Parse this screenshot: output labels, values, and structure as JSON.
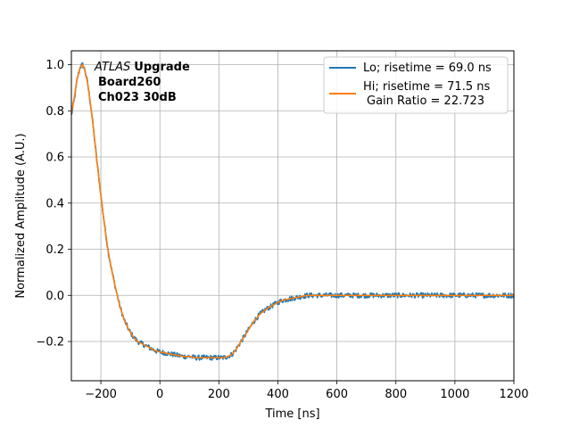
{
  "chart_data": {
    "type": "line",
    "title": "",
    "xlabel": "Time [ns]",
    "ylabel": "Normalized Amplitude (A.U.)",
    "xlim": [
      -300,
      1200
    ],
    "ylim": [
      -0.37,
      1.06
    ],
    "xticks": [
      -200,
      0,
      200,
      400,
      600,
      800,
      1000,
      1200
    ],
    "yticks": [
      -0.2,
      0.0,
      0.2,
      0.4,
      0.6,
      0.8,
      1.0
    ],
    "xtick_labels": [
      "−200",
      "0",
      "200",
      "400",
      "600",
      "800",
      "1000",
      "1200"
    ],
    "ytick_labels": [
      "−0.2",
      "0.0",
      "0.2",
      "0.4",
      "0.6",
      "0.8",
      "1.0"
    ],
    "grid": true,
    "legend_position": "top-right",
    "annotation": {
      "atlas": "ATLAS",
      "upgrade": "Upgrade",
      "line2": "Board260",
      "line3": "Ch023 30dB"
    },
    "series": [
      {
        "name": "Lo; risetime = 69.0 ns",
        "color": "#1f77b4",
        "noisy": true,
        "x": [
          -300,
          -290,
          -280,
          -270,
          -262,
          -255,
          -245,
          -235,
          -225,
          -215,
          -205,
          -195,
          -185,
          -175,
          -165,
          -150,
          -135,
          -120,
          -105,
          -90,
          -75,
          -60,
          -45,
          -30,
          -15,
          0,
          20,
          40,
          60,
          80,
          100,
          120,
          140,
          160,
          180,
          200,
          215,
          230,
          245,
          255,
          265,
          275,
          290,
          305,
          320,
          340,
          360,
          380,
          400,
          420,
          440,
          460,
          480,
          500,
          530,
          560,
          600,
          650,
          700,
          800,
          900,
          1000,
          1100,
          1200
        ],
        "y": [
          0.78,
          0.85,
          0.94,
          0.99,
          1.0,
          0.98,
          0.92,
          0.83,
          0.72,
          0.6,
          0.49,
          0.38,
          0.28,
          0.19,
          0.12,
          0.03,
          -0.05,
          -0.11,
          -0.15,
          -0.18,
          -0.2,
          -0.21,
          -0.22,
          -0.23,
          -0.24,
          -0.245,
          -0.25,
          -0.255,
          -0.26,
          -0.265,
          -0.265,
          -0.27,
          -0.27,
          -0.27,
          -0.27,
          -0.27,
          -0.27,
          -0.265,
          -0.255,
          -0.24,
          -0.22,
          -0.2,
          -0.17,
          -0.14,
          -0.11,
          -0.08,
          -0.06,
          -0.045,
          -0.03,
          -0.02,
          -0.015,
          -0.01,
          -0.005,
          0.0,
          0.0,
          0.0,
          0.0,
          0.0,
          0.0,
          0.0,
          0.0,
          0.0,
          0.0,
          0.0
        ]
      },
      {
        "name": "Hi; risetime = 71.5 ns\n Gain Ratio = 22.723",
        "color": "#ff7f0e",
        "noisy": false,
        "x": [
          -300,
          -290,
          -280,
          -270,
          -262,
          -255,
          -245,
          -235,
          -225,
          -215,
          -205,
          -195,
          -185,
          -175,
          -165,
          -150,
          -135,
          -120,
          -105,
          -90,
          -75,
          -60,
          -45,
          -30,
          -15,
          0,
          20,
          40,
          60,
          80,
          100,
          120,
          140,
          160,
          180,
          200,
          215,
          230,
          245,
          255,
          265,
          275,
          290,
          305,
          320,
          340,
          360,
          380,
          400,
          420,
          440,
          460,
          480,
          500,
          530,
          560,
          600,
          650,
          700,
          800,
          900,
          1000,
          1100,
          1200
        ],
        "y": [
          0.79,
          0.86,
          0.94,
          0.99,
          1.0,
          0.98,
          0.92,
          0.83,
          0.72,
          0.6,
          0.49,
          0.38,
          0.28,
          0.19,
          0.12,
          0.03,
          -0.05,
          -0.11,
          -0.15,
          -0.18,
          -0.2,
          -0.21,
          -0.22,
          -0.23,
          -0.24,
          -0.245,
          -0.25,
          -0.255,
          -0.26,
          -0.265,
          -0.265,
          -0.27,
          -0.27,
          -0.27,
          -0.27,
          -0.27,
          -0.27,
          -0.265,
          -0.255,
          -0.24,
          -0.22,
          -0.2,
          -0.17,
          -0.14,
          -0.11,
          -0.08,
          -0.06,
          -0.045,
          -0.03,
          -0.02,
          -0.015,
          -0.01,
          -0.005,
          0.0,
          0.0,
          0.0,
          0.0,
          0.0,
          0.0,
          0.0,
          0.0,
          0.0,
          0.0,
          0.0
        ]
      }
    ]
  }
}
